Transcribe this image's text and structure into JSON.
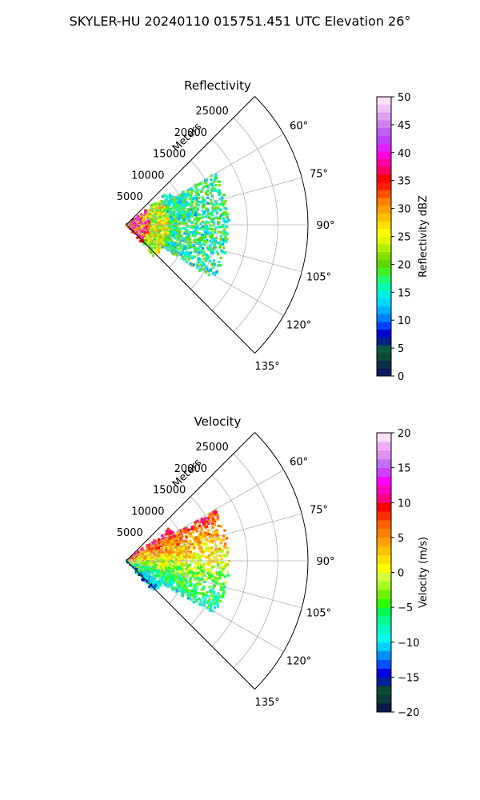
{
  "figure": {
    "suptitle": "SKYLER-HU  20240110  015751.451 UTC Elevation 26°"
  },
  "chart_data": [
    {
      "type": "heatmap",
      "subtype": "polar-sector-radar",
      "title": "Reflectivity",
      "radial_label": "Meters",
      "r_ticks": [
        5000,
        10000,
        15000,
        20000,
        25000
      ],
      "r_max": 30000,
      "theta_ticks": [
        "60°",
        "75°",
        "90°",
        "105°",
        "120°",
        "135°"
      ],
      "theta_tick_values": [
        60,
        75,
        90,
        105,
        120,
        135
      ],
      "theta_range_deg": [
        45,
        135
      ],
      "grid": true,
      "colorbar": {
        "label": "Reflectivity dBZ",
        "ticks": [
          "0",
          "5",
          "10",
          "15",
          "20",
          "25",
          "30",
          "35",
          "40",
          "45",
          "50"
        ],
        "min": 0,
        "max": 50
      },
      "echo_extent_m": [
        0,
        17000
      ],
      "dominant_values": "mostly 10–20 dBZ with 25–40 dBZ near the radar"
    },
    {
      "type": "heatmap",
      "subtype": "polar-sector-radar",
      "title": "Velocity",
      "radial_label": "Meters",
      "r_ticks": [
        5000,
        10000,
        15000,
        20000,
        25000
      ],
      "r_max": 30000,
      "theta_ticks": [
        "60°",
        "75°",
        "90°",
        "105°",
        "120°",
        "135°"
      ],
      "theta_tick_values": [
        60,
        75,
        90,
        105,
        120,
        135
      ],
      "theta_range_deg": [
        45,
        135
      ],
      "grid": true,
      "colorbar": {
        "label": "Velocity (m/s)",
        "ticks": [
          "−20",
          "−15",
          "−10",
          "−5",
          "0",
          "5",
          "10",
          "15",
          "20"
        ],
        "min": -20,
        "max": 20
      },
      "echo_extent_m": [
        0,
        17000
      ],
      "dominant_values": "−10 to +10 m/s; positive (red/orange) north of 90°, negative (green/cyan) south"
    }
  ]
}
